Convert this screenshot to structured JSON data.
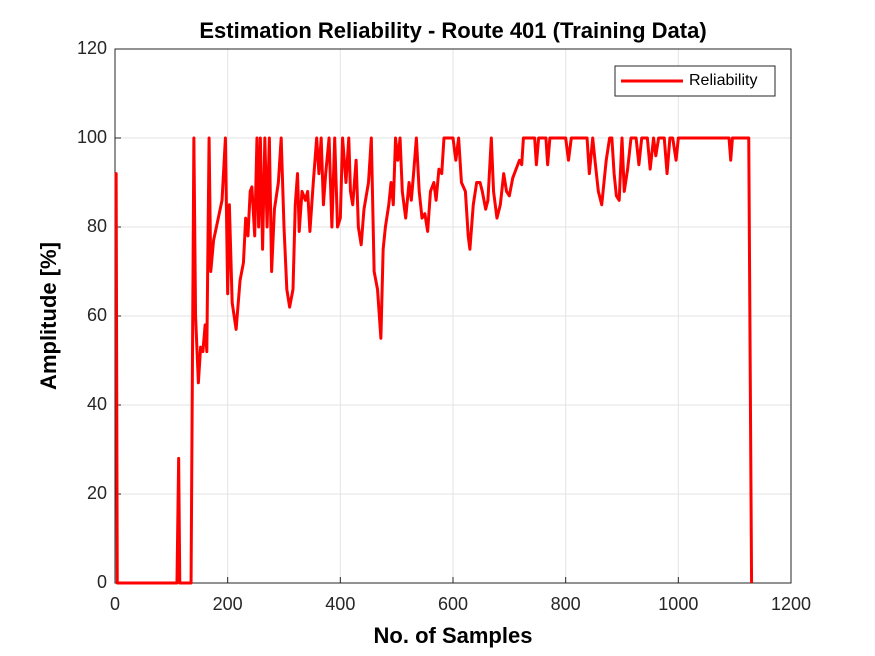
{
  "chart_data": {
    "type": "line",
    "title": "Estimation Reliability - Route 401 (Training Data)",
    "x_label": "No. of Samples",
    "y_label": "Amplitude [%]",
    "xlim": [
      0,
      1200
    ],
    "xticks": [
      0,
      200,
      400,
      600,
      800,
      1000,
      1200
    ],
    "ylim": [
      0,
      120
    ],
    "yticks": [
      0,
      20,
      40,
      60,
      80,
      100,
      120
    ],
    "grid": true,
    "legend_position": "northeast",
    "x": [
      0,
      2,
      4,
      110,
      113,
      115,
      135,
      140,
      143,
      148,
      152,
      156,
      160,
      163,
      167,
      170,
      175,
      180,
      190,
      196,
      200,
      203,
      208,
      215,
      222,
      228,
      232,
      236,
      240,
      243,
      248,
      252,
      255,
      258,
      262,
      266,
      270,
      274,
      278,
      283,
      290,
      295,
      300,
      305,
      310,
      316,
      320,
      324,
      327,
      332,
      338,
      342,
      346,
      352,
      358,
      362,
      366,
      370,
      374,
      380,
      385,
      390,
      395,
      400,
      404,
      410,
      415,
      418,
      422,
      428,
      432,
      437,
      442,
      450,
      455,
      460,
      466,
      472,
      476,
      480,
      486,
      490,
      494,
      498,
      502,
      506,
      510,
      516,
      522,
      526,
      530,
      535,
      540,
      545,
      550,
      555,
      560,
      566,
      570,
      575,
      580,
      584,
      600,
      605,
      610,
      615,
      622,
      627,
      630,
      636,
      642,
      648,
      652,
      658,
      662,
      668,
      672,
      678,
      684,
      690,
      695,
      700,
      706,
      712,
      718,
      722,
      725,
      745,
      748,
      752,
      765,
      768,
      772,
      800,
      805,
      810,
      838,
      842,
      848,
      852,
      858,
      864,
      868,
      872,
      878,
      882,
      886,
      890,
      895,
      900,
      904,
      910,
      916,
      925,
      930,
      935,
      945,
      950,
      956,
      960,
      965,
      975,
      980,
      985,
      990,
      996,
      1000,
      1090,
      1093,
      1096,
      1125,
      1130
    ],
    "series": [
      {
        "name": "Reliability",
        "color": "#ff0000",
        "values": [
          92,
          92,
          0,
          0,
          28,
          0,
          0,
          100,
          60,
          45,
          53,
          52,
          58,
          52,
          100,
          70,
          77,
          80,
          86,
          100,
          65,
          85,
          63,
          57,
          68,
          72,
          82,
          78,
          88,
          89,
          78,
          100,
          80,
          100,
          75,
          100,
          80,
          100,
          70,
          84,
          90,
          100,
          80,
          66,
          62,
          66,
          85,
          92,
          79,
          88,
          86,
          88,
          79,
          90,
          100,
          92,
          100,
          85,
          92,
          100,
          80,
          100,
          80,
          82,
          100,
          90,
          100,
          88,
          85,
          95,
          80,
          76,
          84,
          90,
          100,
          70,
          66,
          55,
          75,
          80,
          85,
          90,
          85,
          100,
          95,
          100,
          88,
          82,
          90,
          86,
          92,
          100,
          88,
          82,
          83,
          79,
          88,
          90,
          86,
          93,
          92,
          100,
          100,
          95,
          100,
          90,
          88,
          78,
          75,
          85,
          90,
          90,
          88,
          84,
          86,
          100,
          88,
          82,
          85,
          92,
          88,
          87,
          91,
          93,
          95,
          94,
          100,
          100,
          94,
          100,
          100,
          94,
          100,
          100,
          95,
          100,
          100,
          92,
          100,
          95,
          88,
          85,
          90,
          95,
          100,
          100,
          92,
          87,
          86,
          100,
          88,
          93,
          100,
          100,
          94,
          100,
          100,
          93,
          100,
          96,
          100,
          100,
          92,
          100,
          100,
          95,
          100,
          100,
          95,
          100,
          100,
          0
        ]
      }
    ]
  }
}
